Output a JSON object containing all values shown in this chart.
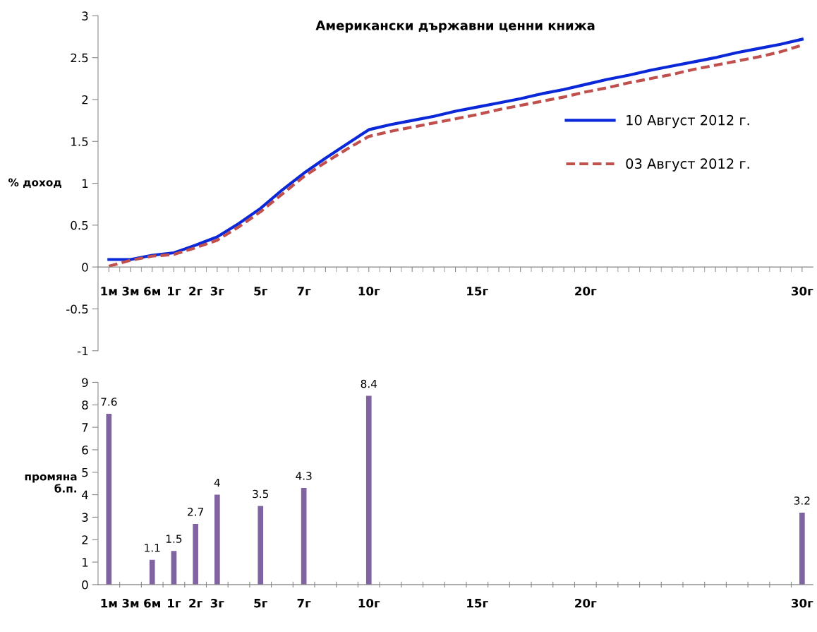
{
  "chart_data": [
    {
      "type": "line",
      "title": "Американски държавни ценни книжа",
      "ylabel": "% доход",
      "categories": [
        "1м",
        "3м",
        "6м",
        "1г",
        "2г",
        "3г",
        null,
        "5г",
        null,
        "7г",
        null,
        null,
        "10г",
        null,
        null,
        null,
        null,
        "15г",
        null,
        null,
        null,
        null,
        "20г",
        null,
        null,
        null,
        null,
        null,
        null,
        null,
        null,
        null,
        "30г"
      ],
      "series": [
        {
          "name": "10 Август 2012 г.",
          "color": "#0a28d8",
          "line_style": "solid",
          "values": [
            0.09,
            0.09,
            0.14,
            0.17,
            0.26,
            0.36,
            0.52,
            0.7,
            0.92,
            1.12,
            1.3,
            1.47,
            1.64,
            1.7,
            1.75,
            1.8,
            1.86,
            1.91,
            1.96,
            2.01,
            2.07,
            2.12,
            2.18,
            2.24,
            2.29,
            2.35,
            2.4,
            2.45,
            2.5,
            2.56,
            2.61,
            2.66,
            2.72
          ]
        },
        {
          "name": "03 Август 2012 г.",
          "color": "#c0504d",
          "line_style": "dashed",
          "values": [
            0.01,
            0.08,
            0.13,
            0.15,
            0.23,
            0.32,
            0.48,
            0.66,
            0.87,
            1.08,
            1.25,
            1.41,
            1.56,
            1.62,
            1.67,
            1.72,
            1.77,
            1.82,
            1.88,
            1.93,
            1.98,
            2.03,
            2.09,
            2.14,
            2.2,
            2.25,
            2.3,
            2.36,
            2.41,
            2.46,
            2.51,
            2.57,
            2.65
          ]
        }
      ],
      "ylim": [
        -1,
        3
      ],
      "yticks": [
        -1,
        -0.5,
        0,
        0.5,
        1,
        1.5,
        2,
        2.5,
        3
      ],
      "legend": "right",
      "grid": false,
      "marker": "none"
    },
    {
      "type": "bar",
      "ylabel": "промяна\nб.п.",
      "categories": [
        "1м",
        "3м",
        "6м",
        "1г",
        "2г",
        "3г",
        null,
        "5г",
        null,
        "7г",
        null,
        null,
        "10г",
        null,
        null,
        null,
        null,
        "15г",
        null,
        null,
        null,
        null,
        "20г",
        null,
        null,
        null,
        null,
        null,
        null,
        null,
        null,
        null,
        "30г"
      ],
      "values": [
        7.6,
        null,
        1.1,
        1.5,
        2.7,
        4,
        null,
        3.5,
        null,
        4.3,
        null,
        null,
        8.4,
        null,
        null,
        null,
        null,
        null,
        null,
        null,
        null,
        null,
        null,
        null,
        null,
        null,
        null,
        null,
        null,
        null,
        null,
        null,
        3.2
      ],
      "color": "#8064a2",
      "data_labels": true,
      "ylim": [
        0,
        9
      ],
      "yticks": [
        0,
        1,
        2,
        3,
        4,
        5,
        6,
        7,
        8,
        9
      ],
      "grid": false
    }
  ]
}
